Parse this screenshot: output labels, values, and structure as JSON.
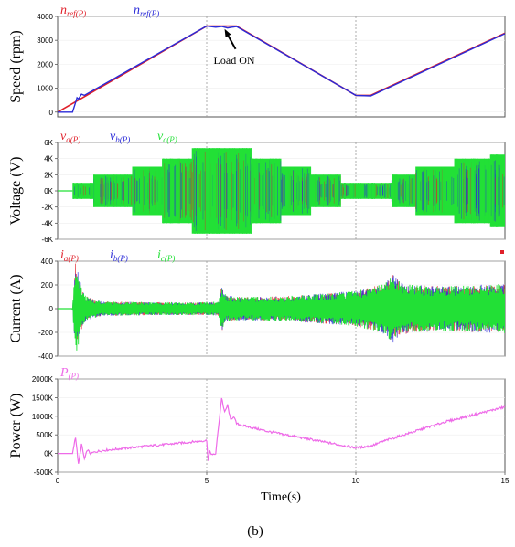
{
  "caption": "(b)",
  "x_axis": {
    "label": "Time(s)",
    "range": [
      0,
      15
    ],
    "ticks": [
      0,
      5,
      10,
      15
    ],
    "tick_labels": [
      "0",
      "5",
      "10",
      "15"
    ]
  },
  "colors": {
    "red": "#e0202a",
    "blue": "#2a2ad8",
    "green": "#22e036",
    "magenta": "#ee6ae8",
    "vline": "#9a9a9a"
  },
  "chart_data": [
    {
      "type": "line",
      "ylabel": "Speed (rpm)",
      "ylim": [
        -200,
        4000
      ],
      "yticks": [
        0,
        1000,
        2000,
        3000,
        4000
      ],
      "ytick_labels": [
        "0",
        "1000",
        "2000",
        "3000",
        "4000"
      ],
      "legend": [
        {
          "base": "n",
          "sub": "ref(P)",
          "color": "red"
        },
        {
          "base": "n",
          "sub": "ref(P)",
          "color": "blue"
        }
      ],
      "annotation": {
        "text": "Load ON",
        "x": 5.6,
        "y": 3550
      },
      "series": [
        {
          "color": "red",
          "x": [
            0,
            5,
            6,
            10,
            10.5,
            15
          ],
          "y": [
            0,
            3600,
            3600,
            700,
            700,
            3300
          ]
        },
        {
          "color": "blue",
          "x": [
            0,
            0.5,
            0.6,
            0.65,
            0.7,
            0.8,
            0.9,
            5,
            5.3,
            5.5,
            5.7,
            6,
            10,
            10.5,
            15
          ],
          "y": [
            0,
            0,
            400,
            600,
            550,
            750,
            700,
            3600,
            3550,
            3580,
            3520,
            3580,
            700,
            680,
            3280
          ]
        }
      ]
    },
    {
      "type": "area",
      "ylabel": "Voltage (V)",
      "ylim": [
        -6000,
        6000
      ],
      "yticks": [
        -6000,
        -4000,
        -2000,
        0,
        2000,
        4000,
        6000
      ],
      "ytick_labels": [
        "-6K",
        "-4K",
        "-2K",
        "0K",
        "2K",
        "4K",
        "6K"
      ],
      "legend": [
        {
          "base": "v",
          "sub": "a(P)",
          "color": "red"
        },
        {
          "base": "v",
          "sub": "b(P)",
          "color": "blue"
        },
        {
          "base": "v",
          "sub": "c(P)",
          "color": "green"
        }
      ],
      "series": [
        {
          "color": "green",
          "name_ref": "envelope",
          "x": [
            0,
            0.5,
            0.5,
            1.2,
            1.2,
            2.5,
            2.5,
            3.5,
            3.5,
            4.5,
            4.5,
            6.5,
            6.5,
            7.5,
            7.5,
            8.5,
            8.5,
            9.5,
            9.5,
            11.2,
            11.2,
            12.0,
            12.0,
            13.3,
            13.3,
            14.5,
            14.5,
            15
          ],
          "y": [
            0,
            0,
            1000,
            1000,
            2000,
            2000,
            3000,
            3000,
            4000,
            4000,
            5300,
            5300,
            4000,
            4000,
            3000,
            3000,
            2000,
            2000,
            1000,
            1000,
            2000,
            2000,
            3000,
            3000,
            4000,
            4000,
            4500,
            4500
          ]
        }
      ]
    },
    {
      "type": "line",
      "ylabel": "Current (A)",
      "ylim": [
        -400,
        400
      ],
      "yticks": [
        -400,
        -200,
        0,
        200,
        400
      ],
      "ytick_labels": [
        "-400",
        "-200",
        "0",
        "200",
        "400"
      ],
      "legend": [
        {
          "base": "i",
          "sub": "a(P)",
          "color": "red"
        },
        {
          "base": "i",
          "sub": "b(P)",
          "color": "blue"
        },
        {
          "base": "i",
          "sub": "c(P)",
          "color": "green"
        }
      ],
      "series": [
        {
          "color": "green",
          "name_ref": "envelope",
          "x": [
            0,
            0.5,
            0.55,
            0.6,
            0.7,
            0.8,
            0.9,
            1.0,
            1.2,
            1.5,
            2,
            3,
            4,
            5,
            5.4,
            5.5,
            5.6,
            5.7,
            6,
            7,
            8,
            9,
            10,
            10.5,
            11,
            11.2,
            11.5,
            12,
            13,
            14,
            15
          ],
          "y": [
            0,
            0,
            200,
            400,
            300,
            180,
            120,
            100,
            80,
            60,
            60,
            55,
            55,
            55,
            60,
            200,
            130,
            110,
            100,
            100,
            110,
            130,
            150,
            180,
            220,
            300,
            220,
            200,
            190,
            200,
            210
          ]
        }
      ]
    },
    {
      "type": "line",
      "ylabel": "Power (W)",
      "ylim": [
        -500000,
        2000000
      ],
      "yticks": [
        -500000,
        0,
        500000,
        1000000,
        1500000,
        2000000
      ],
      "ytick_labels": [
        "-500K",
        "0K",
        "500K",
        "1000K",
        "1500K",
        "2000K"
      ],
      "legend": [
        {
          "base": "P",
          "sub": "(P)",
          "color": "magenta"
        }
      ],
      "series": [
        {
          "color": "magenta",
          "x": [
            0,
            0.5,
            0.6,
            0.7,
            0.8,
            0.9,
            1.0,
            1.1,
            1.3,
            1.5,
            2,
            3,
            4,
            5,
            5.05,
            5.1,
            5.2,
            5.3,
            5.5,
            5.6,
            5.7,
            5.8,
            5.9,
            6.0,
            6.2,
            6.5,
            7,
            8,
            9,
            10,
            10.5,
            11,
            12,
            13,
            14,
            15
          ],
          "y": [
            0,
            0,
            450000,
            -300000,
            250000,
            -150000,
            100000,
            0,
            50000,
            80000,
            120000,
            200000,
            270000,
            350000,
            -200000,
            50000,
            -50000,
            0,
            1500000,
            1100000,
            1300000,
            900000,
            1000000,
            800000,
            750000,
            700000,
            600000,
            450000,
            300000,
            150000,
            200000,
            350000,
            600000,
            850000,
            1050000,
            1250000
          ]
        }
      ]
    }
  ]
}
